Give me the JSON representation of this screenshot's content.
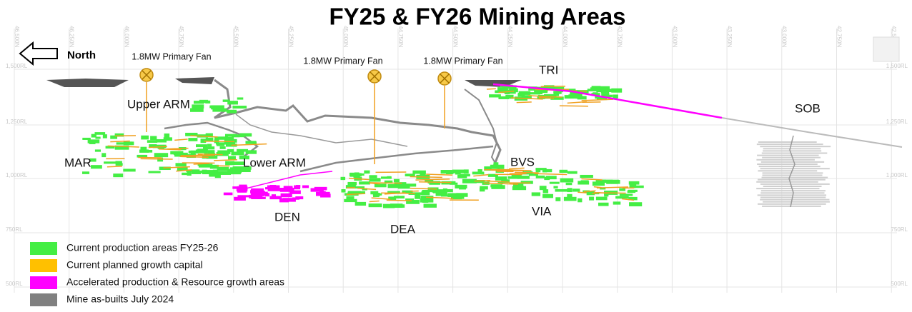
{
  "title": "FY25 & FY26 Mining Areas",
  "north": "North",
  "fans": [
    "1.8MW Primary Fan",
    "1.8MW Primary Fan",
    "1.8MW Primary Fan"
  ],
  "areas": [
    "Upper ARM",
    "MAR",
    "Lower ARM",
    "DEN",
    "DEA",
    "TRI",
    "BVS",
    "VIA",
    "SOB"
  ],
  "legend": [
    "Current production areas FY25-26",
    "Current planned growth capital",
    "Accelerated production & Resource growth areas",
    "Mine as-builts July 2024"
  ],
  "eastings": [
    "46,500N",
    "46,250N",
    "46,000N",
    "45,750N",
    "45,500N",
    "45,250N",
    "45,000N",
    "44,750N",
    "44,500N",
    "44,250N",
    "44,000N",
    "43,750N",
    "43,500N",
    "43,250N",
    "43,000N",
    "42,750N",
    "42,500N"
  ],
  "rl_left": [
    "1,500RL",
    "1,250RL",
    "1,000RL",
    "750RL",
    "500RL"
  ],
  "rl_right": [
    "1,500RL",
    "1,250RL",
    "1,000RL",
    "750RL",
    "500RL"
  ]
}
